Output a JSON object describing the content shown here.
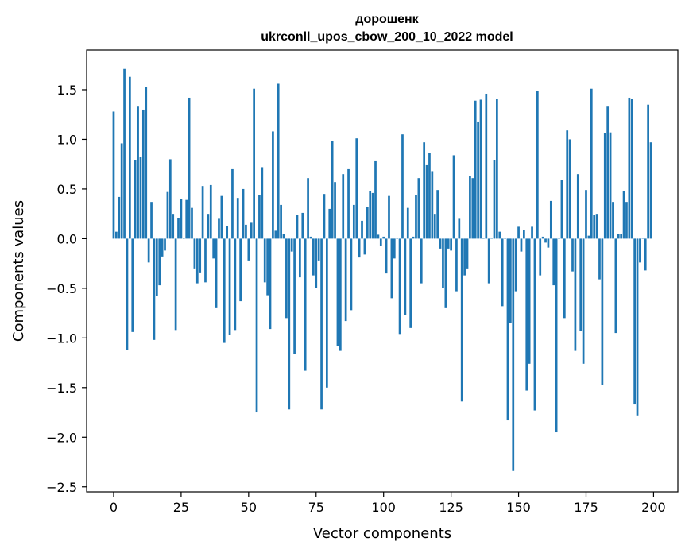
{
  "chart_data": {
    "type": "bar",
    "title_line1": "дорошенк",
    "title_line2": "ukrconll_upos_cbow_200_10_2022 model",
    "xlabel": "Vector components",
    "ylabel": "Components values",
    "xlim": [
      -10,
      209
    ],
    "ylim": [
      -2.55,
      1.9
    ],
    "xticks": [
      0,
      25,
      50,
      75,
      100,
      125,
      150,
      175,
      200
    ],
    "yticks": [
      -2.5,
      -2.0,
      -1.5,
      -1.0,
      -0.5,
      0.0,
      0.5,
      1.0,
      1.5
    ],
    "ytick_labels": [
      "−2.5",
      "−2.0",
      "−1.5",
      "−1.0",
      "−0.5",
      "0.0",
      "0.5",
      "1.0",
      "1.5"
    ],
    "bar_color": "#1f77b4",
    "values": [
      1.28,
      0.07,
      0.42,
      0.96,
      1.71,
      -1.12,
      1.63,
      -0.94,
      0.79,
      1.33,
      0.82,
      1.3,
      1.53,
      -0.24,
      0.37,
      -1.02,
      -0.58,
      -0.47,
      -0.18,
      -0.12,
      0.47,
      0.8,
      0.25,
      -0.92,
      0.21,
      0.4,
      0.01,
      0.39,
      1.42,
      0.31,
      -0.3,
      -0.45,
      -0.34,
      0.53,
      -0.44,
      0.25,
      0.54,
      -0.2,
      -0.7,
      0.2,
      0.43,
      -1.05,
      0.13,
      -0.97,
      0.7,
      -0.92,
      0.41,
      -0.63,
      0.5,
      0.14,
      -0.22,
      0.16,
      1.51,
      -1.75,
      0.44,
      0.72,
      -0.44,
      -0.57,
      -0.91,
      1.08,
      0.08,
      1.56,
      0.34,
      0.05,
      -0.8,
      -1.72,
      -0.13,
      -1.16,
      0.24,
      -0.39,
      0.26,
      -1.33,
      0.61,
      0.02,
      -0.37,
      -0.5,
      -0.22,
      -1.72,
      0.45,
      -1.5,
      0.3,
      0.98,
      0.57,
      -1.08,
      -1.13,
      0.65,
      -0.83,
      0.7,
      -0.72,
      0.34,
      1.01,
      -0.19,
      0.18,
      -0.16,
      0.32,
      0.48,
      0.46,
      0.78,
      0.04,
      -0.07,
      0.02,
      -0.35,
      0.43,
      -0.6,
      -0.2,
      0.01,
      -0.96,
      1.05,
      -0.77,
      0.31,
      -0.9,
      0.02,
      0.44,
      0.61,
      -0.45,
      0.97,
      0.74,
      0.86,
      0.68,
      0.25,
      0.49,
      -0.1,
      -0.5,
      -0.7,
      -0.1,
      -0.12,
      0.84,
      -0.53,
      0.2,
      -1.64,
      -0.37,
      -0.3,
      0.63,
      0.61,
      1.39,
      1.18,
      1.4,
      0.0,
      1.46,
      -0.45,
      0.01,
      0.79,
      1.41,
      0.07,
      -0.68,
      0.0,
      -1.83,
      -0.85,
      -2.34,
      -0.53,
      0.12,
      -0.13,
      0.09,
      -1.53,
      -1.26,
      0.12,
      -1.73,
      1.49,
      -0.37,
      0.02,
      -0.04,
      -0.09,
      0.38,
      -0.47,
      -1.95,
      0.01,
      0.59,
      -0.8,
      1.09,
      1.0,
      -0.33,
      -1.13,
      0.65,
      -0.93,
      -1.26,
      0.49,
      0.03,
      1.51,
      0.24,
      0.25,
      -0.41,
      -1.47,
      1.06,
      1.33,
      1.07,
      0.37,
      -0.95,
      0.05,
      0.05,
      0.48,
      0.37,
      1.42,
      1.41,
      -1.67,
      -1.78,
      -0.24,
      0.01,
      -0.32,
      1.35,
      0.97
    ]
  }
}
